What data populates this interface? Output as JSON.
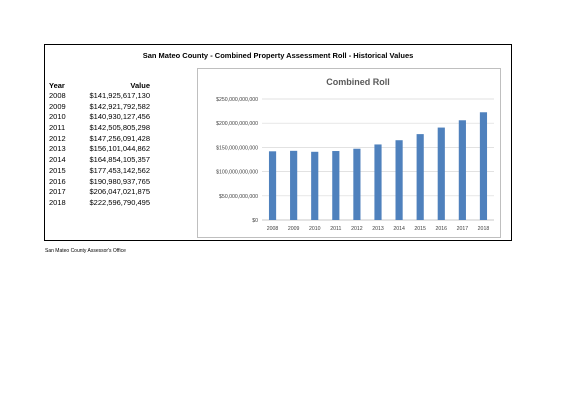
{
  "page": {
    "title": "San Mateo County - Combined Property Assessment Roll - Historical Values",
    "footer": "San Mateo County Assessor's Office"
  },
  "table": {
    "headers": [
      "Year",
      "Value"
    ],
    "rows": [
      {
        "year": "2008",
        "value": "$141,925,617,130"
      },
      {
        "year": "2009",
        "value": "$142,921,792,582"
      },
      {
        "year": "2010",
        "value": "$140,930,127,456"
      },
      {
        "year": "2011",
        "value": "$142,505,805,298"
      },
      {
        "year": "2012",
        "value": "$147,256,091,428"
      },
      {
        "year": "2013",
        "value": "$156,101,044,862"
      },
      {
        "year": "2014",
        "value": "$164,854,105,357"
      },
      {
        "year": "2015",
        "value": "$177,453,142,562"
      },
      {
        "year": "2016",
        "value": "$190,980,937,765"
      },
      {
        "year": "2017",
        "value": "$206,047,021,875"
      },
      {
        "year": "2018",
        "value": "$222,596,790,495"
      }
    ]
  },
  "chart_data": {
    "type": "bar",
    "title": "Combined Roll",
    "xlabel": "",
    "ylabel": "",
    "categories": [
      "2008",
      "2009",
      "2010",
      "2011",
      "2012",
      "2013",
      "2014",
      "2015",
      "2016",
      "2017",
      "2018"
    ],
    "values": [
      141925617130,
      142921792582,
      140930127456,
      142505805298,
      147256091428,
      156101044862,
      164854105357,
      177453142562,
      190980937765,
      206047021875,
      222596790495
    ],
    "ylim": [
      0,
      250000000000
    ],
    "yticks": [
      0,
      50000000000,
      100000000000,
      150000000000,
      200000000000,
      250000000000
    ],
    "ytick_labels": [
      "$0",
      "$50,000,000,000",
      "$100,000,000,000",
      "$150,000,000,000",
      "$200,000,000,000",
      "$250,000,000,000"
    ],
    "grid": true,
    "legend": "none",
    "bar_color": "#4f81bd",
    "grid_color": "#d9d9d9",
    "title_color": "#595959"
  }
}
